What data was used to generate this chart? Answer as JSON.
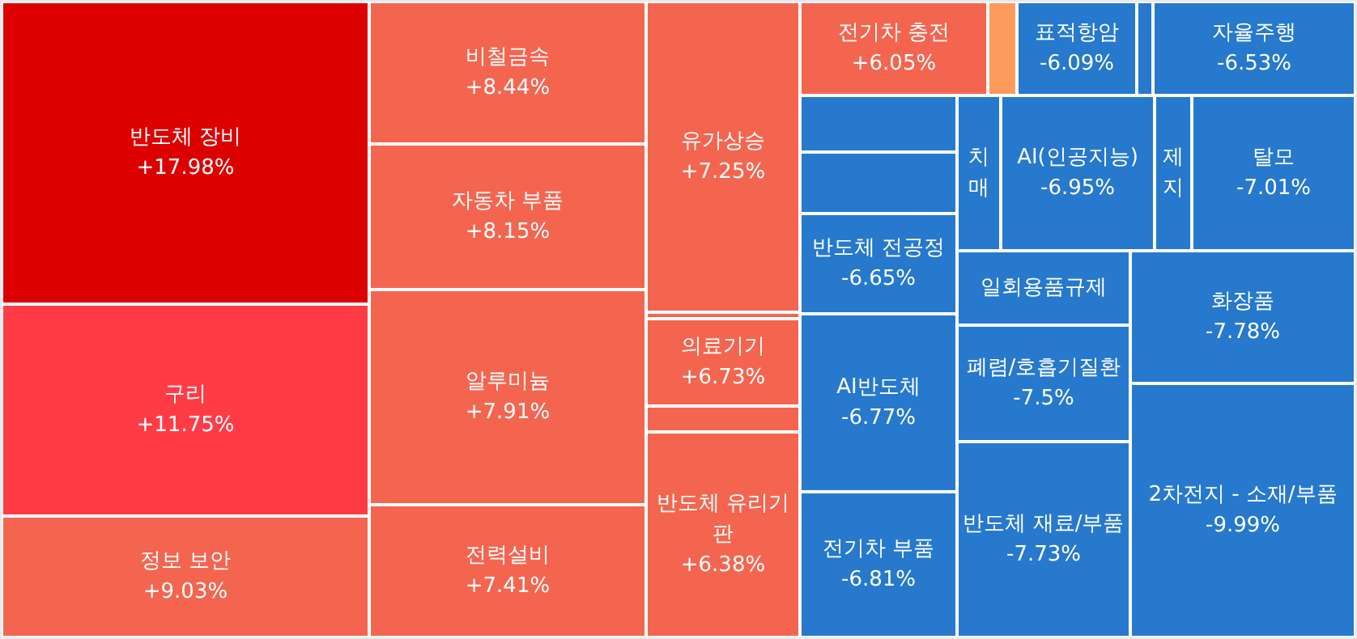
{
  "chart_data": {
    "type": "other",
    "categories": [
      "반도체 장비",
      "구리",
      "정보 보안",
      "비철금속",
      "자동차 부품",
      "알루미늄",
      "전력설비",
      "유가상승",
      null,
      "의료기기",
      null,
      "반도체 유리기판",
      "전기차 충전",
      null,
      "표적항암",
      null,
      "자율주행",
      null,
      null,
      "반도체 전공정",
      "AI반도체",
      "전기차 부품",
      "치매",
      "AI(인공지능)",
      "제지",
      "탈모",
      "일회용품규제",
      "폐렴/호흡기질환",
      "반도체 재료/부품",
      "화장품",
      "2차전지 - 소재/부품"
    ],
    "values": [
      17.98,
      11.75,
      9.03,
      8.44,
      8.15,
      7.91,
      7.41,
      7.25,
      null,
      6.73,
      null,
      6.38,
      6.05,
      null,
      -6.09,
      null,
      -6.53,
      null,
      null,
      -6.65,
      -6.77,
      -6.81,
      null,
      -6.95,
      null,
      -7.01,
      null,
      -7.5,
      -7.73,
      -7.78,
      -9.99
    ],
    "value_labels": [
      "+17.98%",
      "+11.75%",
      "+9.03%",
      "+8.44%",
      "+8.15%",
      "+7.91%",
      "+7.41%",
      "+7.25%",
      null,
      "+6.73%",
      null,
      "+6.38%",
      "+6.05%",
      null,
      "-6.09%",
      null,
      "-6.53%",
      null,
      null,
      "-6.65%",
      "-6.77%",
      "-6.81%",
      null,
      "-6.95%",
      null,
      "-7.01%",
      null,
      "-7.5%",
      "-7.73%",
      "-7.78%",
      "-9.99%"
    ],
    "colors": [
      "#dd0000",
      "#ff3c46",
      "#f4654f",
      "#f4654f",
      "#f4654f",
      "#f4654f",
      "#f4654f",
      "#f4654f",
      "#f4654f",
      "#f4654f",
      "#f4654f",
      "#f4654f",
      "#f4654f",
      "#fd9a5c",
      "#2679cc",
      "#2679cc",
      "#2679cc",
      "#2679cc",
      "#2679cc",
      "#2679cc",
      "#2679cc",
      "#2679cc",
      "#2679cc",
      "#2679cc",
      "#2679cc",
      "#2679cc",
      "#2679cc",
      "#2679cc",
      "#2679cc",
      "#2679cc",
      "#2679cc"
    ]
  }
}
